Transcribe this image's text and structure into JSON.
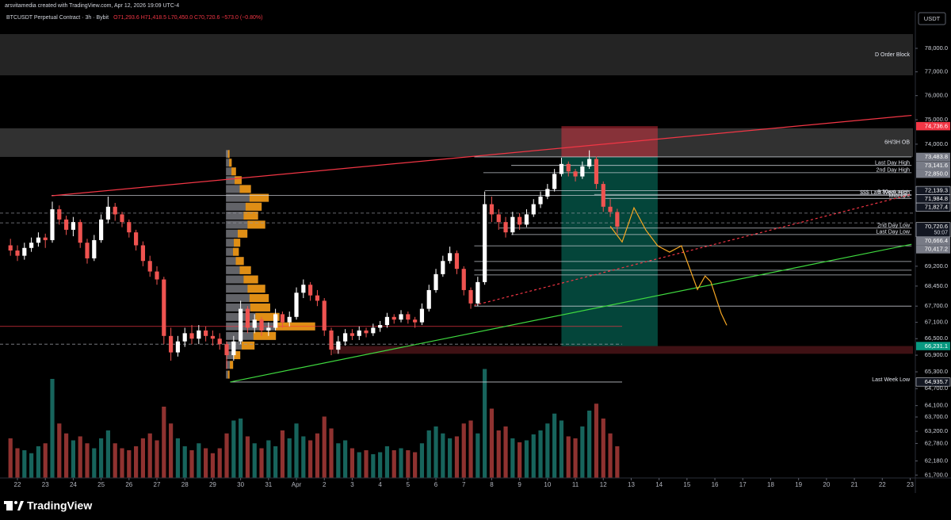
{
  "chart_data": {
    "type": "candlestick",
    "credit": "arsvitamedia created with TradingView.com, Apr 12, 2026 19:09 UTC-4",
    "symbol": "BTCUSDT Perpetual Contract · 3h · Bybit",
    "ohlc_readout": "O71,293.6 H71,418.5 L70,450.0 C70,720.6 −573.0 (−0.80%)",
    "currency": "USDT",
    "brand": "TradingView",
    "log": true,
    "up_color": "#ffffff",
    "down_color": "#ef5350",
    "volume_up_color": "#26a69a",
    "volume_down_color": "#ef5350",
    "xlim": [
      -2.5,
      128.4
    ],
    "ylim": [
      61600,
      79475
    ],
    "xticks": [
      {
        "value": 0,
        "label": "22"
      },
      {
        "value": 4,
        "label": "23"
      },
      {
        "value": 8,
        "label": "24"
      },
      {
        "value": 12,
        "label": "25"
      },
      {
        "value": 16,
        "label": "26"
      },
      {
        "value": 20,
        "label": "27"
      },
      {
        "value": 24,
        "label": "28"
      },
      {
        "value": 28,
        "label": "29"
      },
      {
        "value": 32,
        "label": "30"
      },
      {
        "value": 36,
        "label": "31"
      },
      {
        "value": 40,
        "label": "Apr"
      },
      {
        "value": 44,
        "label": "2"
      },
      {
        "value": 48,
        "label": "3"
      },
      {
        "value": 52,
        "label": "4"
      },
      {
        "value": 56,
        "label": "5"
      },
      {
        "value": 60,
        "label": "6"
      },
      {
        "value": 64,
        "label": "7"
      },
      {
        "value": 68,
        "label": "8"
      },
      {
        "value": 72,
        "label": "9"
      },
      {
        "value": 76,
        "label": "10"
      },
      {
        "value": 80,
        "label": "11"
      },
      {
        "value": 84,
        "label": "12"
      },
      {
        "value": 88,
        "label": "13"
      },
      {
        "value": 92,
        "label": "14"
      },
      {
        "value": 96,
        "label": "15"
      },
      {
        "value": 100,
        "label": "16"
      },
      {
        "value": 104,
        "label": "17"
      },
      {
        "value": 108,
        "label": "18"
      },
      {
        "value": 112,
        "label": "19"
      },
      {
        "value": 116,
        "label": "20"
      },
      {
        "value": 120,
        "label": "21"
      },
      {
        "value": 124,
        "label": "22"
      },
      {
        "value": 128,
        "label": "23"
      }
    ],
    "yticks": [
      {
        "value": 78000,
        "label": "78,000.0"
      },
      {
        "value": 77000,
        "label": "77,000.0"
      },
      {
        "value": 76000,
        "label": "76,000.0"
      },
      {
        "value": 75000,
        "label": "75,000.0"
      },
      {
        "value": 74000,
        "label": "74,000.0"
      },
      {
        "value": 69200,
        "label": "69,200.0"
      },
      {
        "value": 68450,
        "label": "68,450.0"
      },
      {
        "value": 67700,
        "label": "67,700.0"
      },
      {
        "value": 67100,
        "label": "67,100.0"
      },
      {
        "value": 66500,
        "label": "66,500.0"
      },
      {
        "value": 65900,
        "label": "65,900.0"
      },
      {
        "value": 65300,
        "label": "65,300.0"
      },
      {
        "value": 64700,
        "label": "64,700.0"
      },
      {
        "value": 64100,
        "label": "64,100.0"
      },
      {
        "value": 63700,
        "label": "63,700.0"
      },
      {
        "value": 63200,
        "label": "63,200.0"
      },
      {
        "value": 62780,
        "label": "62,780.0"
      },
      {
        "value": 62180,
        "label": "62,180.0"
      },
      {
        "value": 61700,
        "label": "61,700.0"
      }
    ],
    "x": [
      -1,
      0,
      1,
      2,
      3,
      4,
      5,
      6,
      7,
      8,
      9,
      10,
      11,
      12,
      13,
      14,
      15,
      16,
      17,
      18,
      19,
      20,
      21,
      22,
      23,
      24,
      25,
      26,
      27,
      28,
      29,
      30,
      31,
      32,
      33,
      34,
      35,
      36,
      37,
      38,
      39,
      40,
      41,
      42,
      43,
      44,
      45,
      46,
      47,
      48,
      49,
      50,
      51,
      52,
      53,
      54,
      55,
      56,
      57,
      58,
      59,
      60,
      61,
      62,
      63,
      64,
      65,
      66,
      67,
      68,
      69,
      70,
      71,
      72,
      73,
      74,
      75,
      76,
      77,
      78,
      79,
      80,
      81,
      82,
      83,
      84,
      85,
      86
    ],
    "open": [
      70000,
      69800,
      69600,
      69900,
      70100,
      70300,
      70200,
      71400,
      71000,
      70600,
      70900,
      70100,
      69500,
      70200,
      71000,
      71500,
      71200,
      70900,
      70500,
      70000,
      69400,
      69000,
      68700,
      66600,
      66000,
      66400,
      66700,
      66500,
      66800,
      66600,
      66500,
      66300,
      65900,
      66400,
      67600,
      66900,
      67200,
      66800,
      66900,
      67400,
      67100,
      67300,
      68200,
      68500,
      68100,
      67900,
      66800,
      66100,
      66400,
      66700,
      66600,
      66800,
      66700,
      66900,
      67000,
      67300,
      67200,
      67400,
      67200,
      67100,
      67600,
      68300,
      68900,
      69400,
      69700,
      69100,
      68300,
      67800,
      68600,
      71600,
      71200,
      70900,
      70500,
      71100,
      70800,
      71200,
      71600,
      71900,
      72200,
      72800,
      73200,
      72900,
      72700,
      73100,
      73400,
      72400,
      71500,
      71293.6
    ],
    "high": [
      70250,
      70000,
      70100,
      70300,
      70500,
      70450,
      71700,
      71550,
      71150,
      71100,
      71000,
      70250,
      70400,
      71200,
      71900,
      71650,
      71300,
      71000,
      70600,
      70150,
      69600,
      69200,
      68800,
      66900,
      66600,
      66900,
      67000,
      67000,
      66950,
      66800,
      66700,
      66400,
      66600,
      67900,
      67700,
      67400,
      67300,
      67100,
      67600,
      67500,
      67500,
      68400,
      68700,
      68600,
      68300,
      68000,
      66900,
      66600,
      66850,
      66850,
      66950,
      66900,
      67050,
      67150,
      67450,
      67400,
      67550,
      67500,
      67300,
      67800,
      68500,
      69100,
      69600,
      69950,
      69800,
      69200,
      68400,
      68800,
      72100,
      71900,
      71400,
      71100,
      71300,
      71250,
      71400,
      71800,
      72100,
      72400,
      73000,
      73450,
      73300,
      73000,
      73300,
      73750,
      73500,
      72500,
      71800,
      71418.5
    ],
    "low": [
      69600,
      69400,
      69450,
      69750,
      69950,
      69900,
      70100,
      70800,
      70400,
      70350,
      69900,
      69300,
      69400,
      70100,
      70850,
      70950,
      70700,
      70300,
      69800,
      69200,
      68800,
      68500,
      66300,
      65700,
      65850,
      66200,
      66300,
      66300,
      66400,
      66250,
      66100,
      65400,
      65700,
      66300,
      66700,
      66700,
      66600,
      66600,
      66800,
      66900,
      66950,
      67200,
      68000,
      67900,
      67700,
      66600,
      65900,
      65950,
      66250,
      66450,
      66450,
      66550,
      66600,
      66750,
      66900,
      67050,
      67100,
      67050,
      66900,
      67000,
      67500,
      68200,
      68800,
      69300,
      68900,
      68100,
      67600,
      67700,
      68500,
      70900,
      70600,
      70300,
      70400,
      70600,
      70700,
      71100,
      71450,
      71800,
      72100,
      72700,
      72700,
      72500,
      72600,
      73000,
      72200,
      71300,
      71100,
      70450
    ],
    "close": [
      69800,
      69600,
      69900,
      70100,
      70300,
      70200,
      71400,
      71000,
      70600,
      70900,
      70100,
      69500,
      70200,
      71000,
      71500,
      71200,
      70900,
      70500,
      70000,
      69400,
      69000,
      68700,
      66600,
      66000,
      66400,
      66700,
      66500,
      66800,
      66600,
      66500,
      66300,
      65900,
      66400,
      67600,
      66900,
      67200,
      66800,
      66900,
      67400,
      67100,
      67300,
      68200,
      68500,
      68100,
      67900,
      66800,
      66100,
      66400,
      66700,
      66600,
      66800,
      66700,
      66900,
      67000,
      67300,
      67200,
      67400,
      67200,
      67100,
      67600,
      68300,
      68900,
      69400,
      69700,
      69100,
      68300,
      67800,
      68600,
      71600,
      71200,
      70900,
      70500,
      71100,
      70800,
      71200,
      71600,
      71900,
      72200,
      72800,
      73200,
      72900,
      72700,
      73100,
      73400,
      72400,
      71500,
      71293.6,
      70720.6
    ],
    "volume": [
      40,
      30,
      28,
      25,
      32,
      35,
      100,
      55,
      45,
      38,
      42,
      35,
      30,
      40,
      48,
      35,
      30,
      28,
      32,
      40,
      45,
      38,
      72,
      55,
      40,
      32,
      28,
      35,
      30,
      25,
      30,
      45,
      58,
      60,
      42,
      35,
      30,
      38,
      32,
      48,
      40,
      55,
      42,
      38,
      45,
      62,
      50,
      35,
      38,
      30,
      26,
      28,
      24,
      26,
      32,
      28,
      30,
      28,
      26,
      35,
      48,
      52,
      45,
      40,
      42,
      55,
      58,
      45,
      110,
      70,
      48,
      52,
      40,
      36,
      38,
      44,
      48,
      55,
      65,
      58,
      42,
      40,
      52,
      68,
      75,
      60,
      45,
      32
    ],
    "volume_profile": {
      "x": 29.9,
      "color": "#ff9800",
      "prices": [
        73600,
        73250,
        72900,
        72550,
        72200,
        71850,
        71500,
        71150,
        70800,
        70450,
        70100,
        69750,
        69400,
        69050,
        68700,
        68350,
        68000,
        67650,
        67300,
        66950,
        66600,
        66250,
        65900,
        65550,
        65200
      ],
      "values": [
        5,
        8,
        14,
        22,
        35,
        60,
        50,
        45,
        55,
        30,
        20,
        18,
        25,
        35,
        45,
        55,
        60,
        62,
        75,
        125,
        70,
        40,
        20,
        10,
        5
      ]
    },
    "zones": [
      {
        "name": "D Order Block",
        "top": 78614,
        "bottom": 76853,
        "color": "#2a2a2a"
      },
      {
        "name": "6H/3H OB",
        "top": 74650,
        "bottom": 73483.8,
        "color": "#3a3a3a"
      },
      {
        "top": 66231.1,
        "bottom": 65950,
        "x": [
          45.2,
          128.4
        ],
        "color": "#4a1418"
      }
    ],
    "position": {
      "x": [
        78.0,
        91.8
      ],
      "stop": 74736.6,
      "entry": 73483.8,
      "target": 66231.1,
      "stop_color": "#f23645",
      "target_color": "#089981"
    },
    "levels": [
      {
        "value": 73483.8,
        "x": [
          65.5,
          128.2
        ],
        "color": "#d1d4dc"
      },
      {
        "name": "Last Day High",
        "value": 73141.6,
        "x": [
          70.8,
          128.2
        ],
        "color": "#d1d4dc"
      },
      {
        "name": "2nd Day High",
        "value": 72850,
        "x": [
          66.8,
          128.2
        ],
        "color": "#d1d4dc"
      },
      {
        "value": 72139.3,
        "x": [
          67,
          128.2
        ],
        "color": "#d1d4dc"
      },
      {
        "name": "8:30am open",
        "value": 71984.8,
        "x": [
          82.7,
          128.2
        ],
        "color": "#d1d4dc"
      },
      {
        "name": "$$$ Last Week High",
        "value": 71950,
        "x": [
          4.9,
          128.2
        ],
        "color": "#d1d4dc"
      },
      {
        "name": "Midnight",
        "value": 71827.4,
        "x": [
          83.9,
          128.2
        ],
        "color": "#d1d4dc"
      },
      {
        "value": 71250,
        "color": "#9598a1",
        "dash": true
      },
      {
        "value": 70870,
        "color": "#9598a1",
        "dash": true
      },
      {
        "name": "2nd Day Low",
        "value": 70666.4,
        "x": [
          69.1,
          128.2
        ],
        "color": "#d1d4dc"
      },
      {
        "name": "Last Day Low",
        "value": 70417.2,
        "x": [
          70.8,
          128.2
        ],
        "color": "#d1d4dc"
      },
      {
        "value": 69980,
        "x": [
          65.5,
          128.2
        ],
        "color": "#d1d4dc"
      },
      {
        "value": 69380,
        "x": [
          65.5,
          128.2
        ],
        "color": "#d1d4dc"
      },
      {
        "value": 69050,
        "x": [
          65.5,
          128.2
        ],
        "color": "#d1d4dc"
      },
      {
        "value": 68870,
        "x": [
          65.5,
          128.2
        ],
        "color": "#d1d4dc"
      },
      {
        "value": 67700,
        "x": [
          65.5,
          128.2
        ],
        "color": "#d1d4dc"
      },
      {
        "value": 66950,
        "x": [
          -2.5,
          86.7
        ],
        "color": "#f23645"
      },
      {
        "value": 66300,
        "x": [
          -2.5,
          86.7
        ],
        "color": "#9598a1",
        "dash": true
      },
      {
        "name": "Last Week Low",
        "value": 64935.7,
        "x": [
          30.5,
          86.7
        ],
        "color": "#d1d4dc"
      }
    ],
    "trendlines": [
      {
        "color": "#f23645",
        "points": [
          [
            4.9,
            71930
          ],
          [
            128.2,
            75180
          ]
        ]
      },
      {
        "color": "#3fd93f",
        "points": [
          [
            30.5,
            64935.7
          ],
          [
            128.2,
            70040
          ]
        ]
      },
      {
        "color": "#f23645",
        "dash": true,
        "points": [
          [
            65.5,
            67730
          ],
          [
            128.2,
            71990
          ]
        ]
      },
      {
        "color": "#f5a623",
        "points": [
          [
            85.0,
            70740
          ],
          [
            86.7,
            70130
          ],
          [
            88.4,
            71460
          ],
          [
            90.1,
            70590
          ],
          [
            91.8,
            69980
          ],
          [
            93.5,
            69740
          ],
          [
            95.2,
            69980
          ],
          [
            97.5,
            68320
          ],
          [
            98.6,
            68830
          ],
          [
            99.4,
            68620
          ],
          [
            100.9,
            67430
          ],
          [
            101.7,
            66990
          ]
        ]
      }
    ],
    "price_tags": [
      {
        "value": 74736.6,
        "label": "74,736.6",
        "color": "#f23645"
      },
      {
        "value": 73483.8,
        "label": "73,483.8",
        "color": "#787b86"
      },
      {
        "value": 73141.6,
        "label": "73,141.6",
        "color": "#787b86"
      },
      {
        "value": 72850,
        "label": "72,850.0",
        "color": "#787b86"
      },
      {
        "value": 72139.3,
        "label": "72,139.3",
        "color": "#131722"
      },
      {
        "value": 71984.8,
        "label": "71,984.8",
        "color": "#131722"
      },
      {
        "value": 71827.4,
        "label": "71,827.4",
        "color": "#131722"
      },
      {
        "value": 70720.6,
        "label": "70,720.6",
        "countdown": "50:07",
        "color": "#131722"
      },
      {
        "value": 70666.4,
        "label": "70,666.4",
        "color": "#787b86"
      },
      {
        "value": 70417.2,
        "label": "70,417.2",
        "color": "#787b86"
      },
      {
        "value": 66231.1,
        "label": "66,231.1",
        "color": "#089981"
      },
      {
        "value": 64935.7,
        "label": "64,935.7",
        "color": "#131722"
      }
    ]
  }
}
